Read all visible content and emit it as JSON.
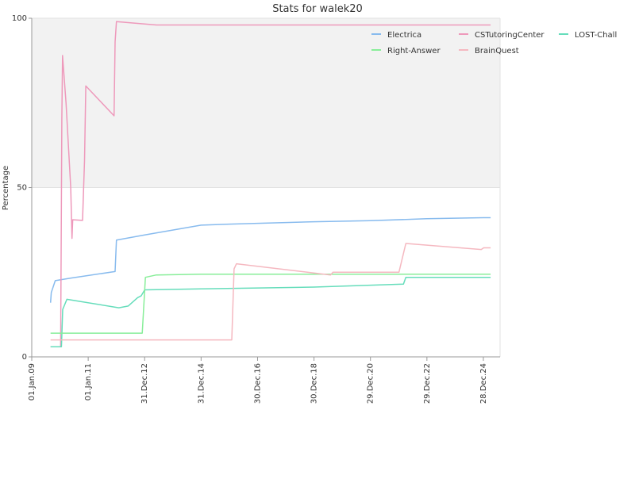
{
  "chart_data": {
    "type": "line",
    "title": "Stats for walek20",
    "xlabel": "",
    "ylabel": "Percentage",
    "ylim": [
      0,
      100
    ],
    "xlim": [
      "2009-01-01",
      "2025-08-01"
    ],
    "yticks": [
      0,
      50,
      100
    ],
    "xticks": [
      {
        "date": "2009-01-01",
        "label": "01.Jan.09"
      },
      {
        "date": "2011-01-01",
        "label": "01.Jan.11"
      },
      {
        "date": "2012-12-31",
        "label": "31.Dec.12"
      },
      {
        "date": "2014-12-31",
        "label": "31.Dec.14"
      },
      {
        "date": "2016-12-30",
        "label": "30.Dec.16"
      },
      {
        "date": "2018-12-30",
        "label": "30.Dec.18"
      },
      {
        "date": "2020-12-29",
        "label": "29.Dec.20"
      },
      {
        "date": "2022-12-29",
        "label": "29.Dec.22"
      },
      {
        "date": "2024-12-28",
        "label": "28.Dec.24"
      }
    ],
    "band": {
      "from": 50,
      "to": 100,
      "color": "#f2f2f2"
    },
    "grid": true,
    "legend_position": "top-right",
    "series": [
      {
        "name": "Electrica",
        "color": "#88bbee",
        "points": [
          [
            "2009-09-01",
            16
          ],
          [
            "2009-09-10",
            19
          ],
          [
            "2009-11-01",
            22.5
          ],
          [
            "2010-06-01",
            23.3
          ],
          [
            "2011-12-15",
            25.2
          ],
          [
            "2012-01-01",
            34.5
          ],
          [
            "2013-01-01",
            36
          ],
          [
            "2014-12-31",
            38.9
          ],
          [
            "2016-01-01",
            39.2
          ],
          [
            "2018-12-30",
            39.9
          ],
          [
            "2020-12-29",
            40.2
          ],
          [
            "2022-12-29",
            40.8
          ],
          [
            "2024-12-28",
            41.1
          ],
          [
            "2025-04-01",
            41.1
          ]
        ]
      },
      {
        "name": "CSTutoringCenter",
        "color": "#ee99bb",
        "points": [
          [
            "2009-09-01",
            3
          ],
          [
            "2010-01-10",
            3
          ],
          [
            "2010-01-25",
            70
          ],
          [
            "2010-02-03",
            89
          ],
          [
            "2010-03-20",
            75
          ],
          [
            "2010-05-20",
            50
          ],
          [
            "2010-06-05",
            35
          ],
          [
            "2010-06-15",
            40.5
          ],
          [
            "2010-10-20",
            40.3
          ],
          [
            "2010-11-15",
            58
          ],
          [
            "2010-12-01",
            80
          ],
          [
            "2011-12-01",
            71.2
          ],
          [
            "2011-12-15",
            93
          ],
          [
            "2012-01-01",
            99
          ],
          [
            "2013-06-01",
            98
          ],
          [
            "2014-12-31",
            98
          ],
          [
            "2020-12-29",
            98
          ],
          [
            "2025-04-01",
            98
          ]
        ]
      },
      {
        "name": "LOST-Chall",
        "color": "#66ddbb",
        "points": [
          [
            "2009-09-01",
            3
          ],
          [
            "2010-01-20",
            3
          ],
          [
            "2010-02-05",
            14
          ],
          [
            "2010-04-01",
            17
          ],
          [
            "2012-02-01",
            14.5
          ],
          [
            "2012-06-01",
            15
          ],
          [
            "2012-10-01",
            17.5
          ],
          [
            "2012-11-15",
            18
          ],
          [
            "2013-01-01",
            19.8
          ],
          [
            "2014-12-31",
            20.1
          ],
          [
            "2018-12-30",
            20.6
          ],
          [
            "2022-03-01",
            21.5
          ],
          [
            "2022-04-01",
            23.5
          ],
          [
            "2025-04-01",
            23.5
          ]
        ]
      },
      {
        "name": "Right-Answer",
        "color": "#88ee99",
        "points": [
          [
            "2009-09-01",
            7
          ],
          [
            "2012-11-30",
            7
          ],
          [
            "2013-01-10",
            23.5
          ],
          [
            "2013-06-01",
            24.2
          ],
          [
            "2014-12-31",
            24.4
          ],
          [
            "2020-12-29",
            24.4
          ],
          [
            "2025-04-01",
            24.4
          ]
        ]
      },
      {
        "name": "BrainQuest",
        "color": "#f5b8c0",
        "points": [
          [
            "2009-09-01",
            5
          ],
          [
            "2016-02-01",
            5
          ],
          [
            "2016-03-01",
            26
          ],
          [
            "2016-04-01",
            27.5
          ],
          [
            "2019-08-01",
            24.2
          ],
          [
            "2019-09-01",
            25
          ],
          [
            "2022-01-01",
            25
          ],
          [
            "2022-04-01",
            33.5
          ],
          [
            "2024-12-01",
            31.7
          ],
          [
            "2025-01-01",
            32.2
          ],
          [
            "2025-04-01",
            32.2
          ]
        ]
      }
    ]
  }
}
